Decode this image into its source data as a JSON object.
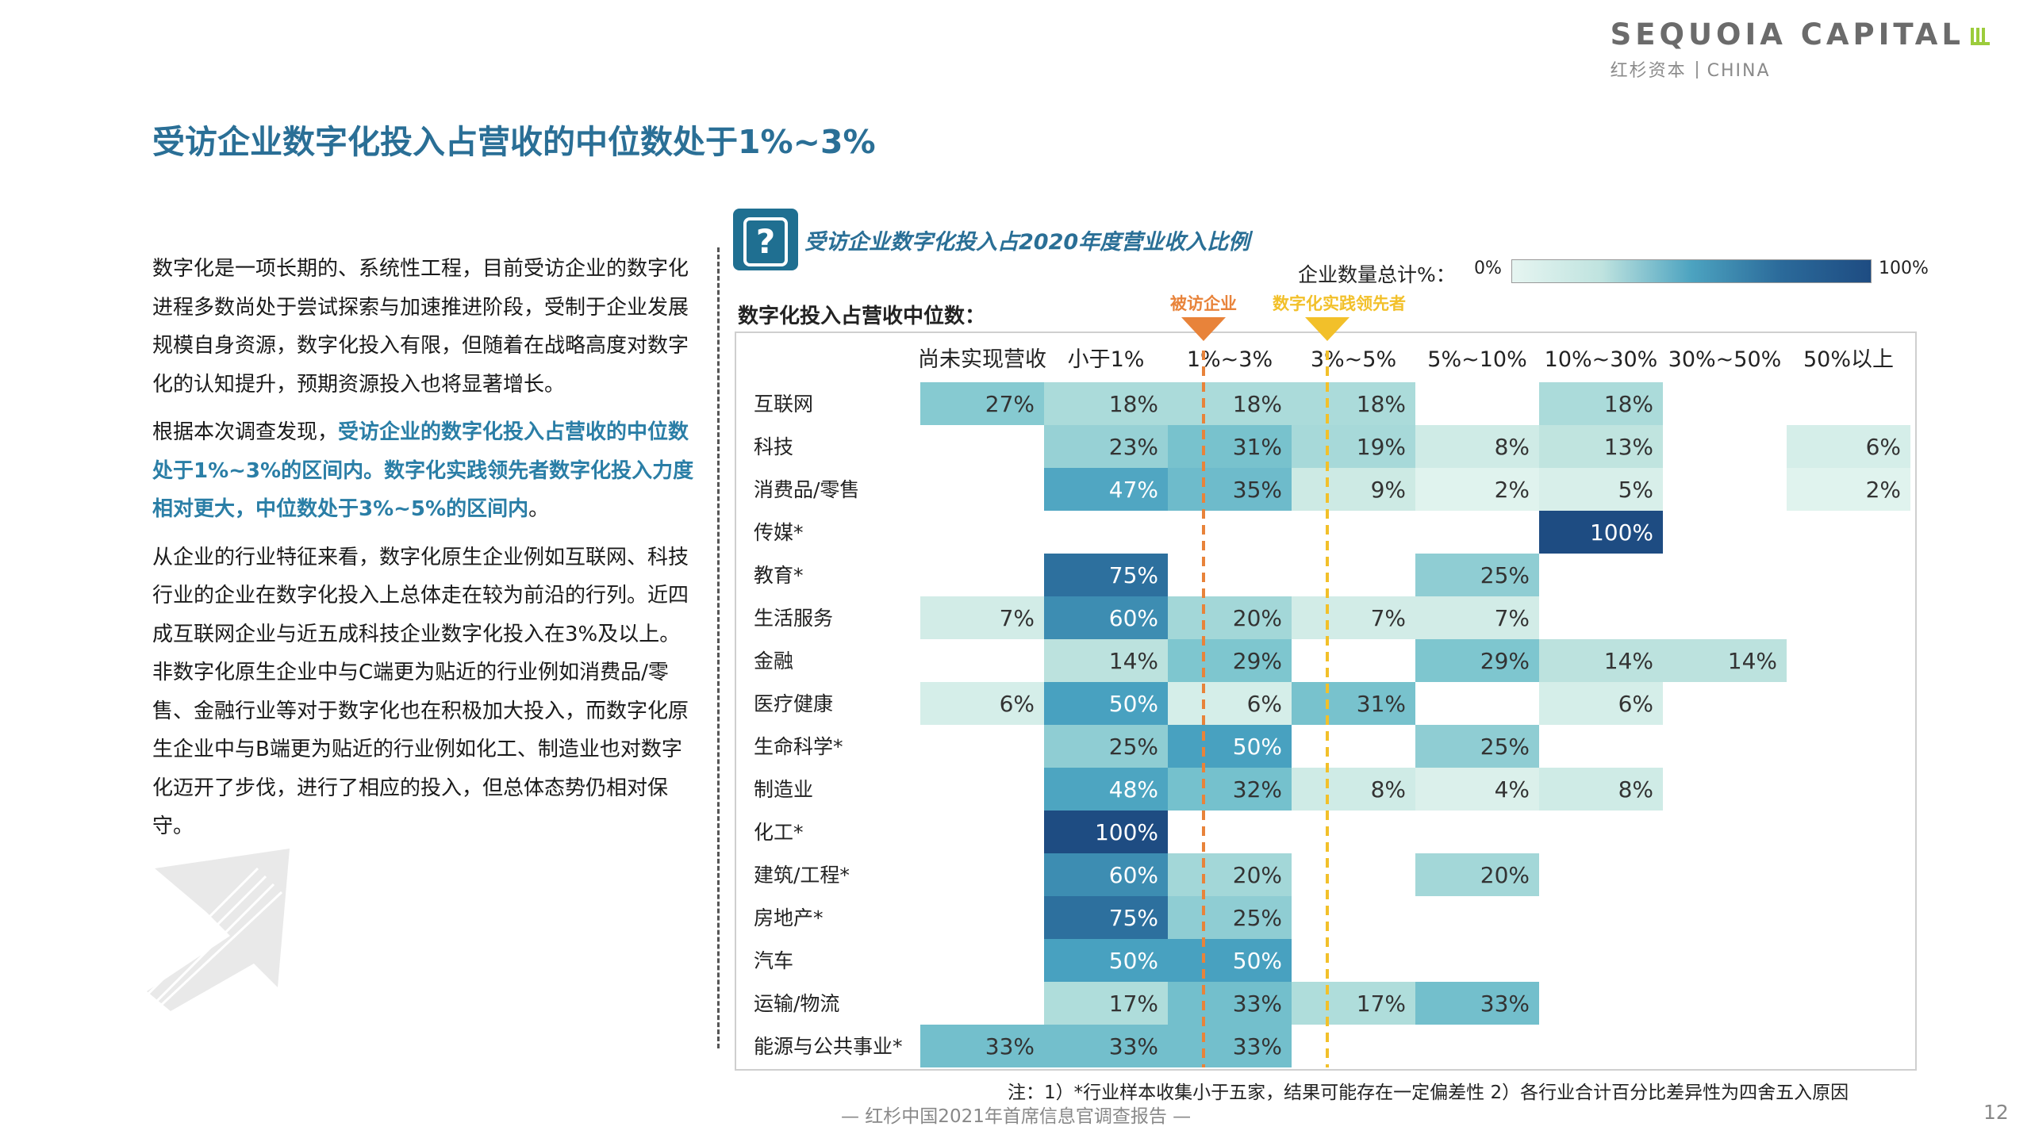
{
  "logo": {
    "main": "SEQUOIA CAPITAL",
    "sub_cn": "红杉资本",
    "sub_en": "CHINA"
  },
  "page_title": "受访企业数字化投入占营收的中位数处于1%~3%",
  "paragraphs": [
    [
      {
        "t": "数字化是一项长期的、系统性工程，目前受访企业的数字化进程多数尚处于尝试探索与加速推进阶段，受制于企业发展规模自身资源，数字化投入有限，但随着在战略高度对数字化的认知提升，预期资源投入也将显著增长。",
        "h": false
      }
    ],
    [
      {
        "t": "根据本次调查发现，",
        "h": false
      },
      {
        "t": "受访企业的数字化投入占营收的中位数处于1%~3%的区间内。数字化实践领先者数字化投入力度相对更大，中位数处于3%~5%的区间内",
        "h": true
      },
      {
        "t": "。",
        "h": false
      }
    ],
    [
      {
        "t": "从企业的行业特征来看，数字化原生企业例如互联网、科技行业的企业在数字化投入上总体走在较为前沿的行列。近四成互联网企业与近五成科技企业数字化投入在3%及以上。非数字化原生企业中与C端更为贴近的行业例如消费品/零售、金融行业等对于数字化也在积极加大投入，而数字化原生企业中与B端更为贴近的行业例如化工、制造业也对数字化迈开了步伐，进行了相应的投入，但总体态势仍相对保守。",
        "h": false
      }
    ]
  ],
  "icon": {
    "question": "?"
  },
  "colors": {
    "title": "#2a6f96",
    "highlight": "#2a7ea6",
    "orange": "#e8833a",
    "yellow": "#f2c02a"
  },
  "chart_data": {
    "type": "heatmap",
    "title": "受访企业数字化投入占2020年度营业收入比例",
    "row_title": "数字化投入占营收中位数：",
    "legend": {
      "label": "企业数量总计%：",
      "min": "0%",
      "max": "100%"
    },
    "columns": [
      "尚未实现营收",
      "小于1%",
      "1%~3%",
      "3%~5%",
      "5%~10%",
      "10%~30%",
      "30%~50%",
      "50%以上"
    ],
    "rows": [
      "互联网",
      "科技",
      "消费品/零售",
      "传媒*",
      "教育*",
      "生活服务",
      "金融",
      "医疗健康",
      "生命科学*",
      "制造业",
      "化工*",
      "建筑/工程*",
      "房地产*",
      "汽车",
      "运输/物流",
      "能源与公共事业*"
    ],
    "values": [
      [
        27,
        18,
        18,
        18,
        null,
        18,
        null,
        null
      ],
      [
        null,
        23,
        31,
        19,
        8,
        13,
        null,
        6
      ],
      [
        null,
        47,
        35,
        9,
        2,
        5,
        null,
        2
      ],
      [
        null,
        null,
        null,
        null,
        null,
        100,
        null,
        null
      ],
      [
        null,
        75,
        null,
        null,
        25,
        null,
        null,
        null
      ],
      [
        7,
        60,
        20,
        7,
        7,
        null,
        null,
        null
      ],
      [
        null,
        14,
        29,
        null,
        29,
        14,
        14,
        null
      ],
      [
        6,
        50,
        6,
        31,
        null,
        6,
        null,
        null
      ],
      [
        null,
        25,
        50,
        null,
        25,
        null,
        null,
        null
      ],
      [
        null,
        48,
        32,
        8,
        4,
        8,
        null,
        null
      ],
      [
        null,
        100,
        null,
        null,
        null,
        null,
        null,
        null
      ],
      [
        null,
        60,
        20,
        null,
        20,
        null,
        null,
        null
      ],
      [
        null,
        75,
        25,
        null,
        null,
        null,
        null,
        null
      ],
      [
        null,
        50,
        50,
        null,
        null,
        null,
        null,
        null
      ],
      [
        null,
        17,
        33,
        17,
        33,
        null,
        null,
        null
      ],
      [
        33,
        33,
        33,
        null,
        null,
        null,
        null,
        null
      ]
    ],
    "markers": [
      {
        "label": "被访企业",
        "column": "1%~3%",
        "color": "#e8833a"
      },
      {
        "label": "数字化实践领先者",
        "column": "3%~5%",
        "color": "#f2c02a"
      }
    ],
    "note": "注：1）*行业样本收集小于五家，结果可能存在一定偏差性 2）各行业合计百分比差异性为四舍五入原因"
  },
  "footer": "— 红杉中国2021年首席信息官调查报告 —",
  "page_number": "12"
}
